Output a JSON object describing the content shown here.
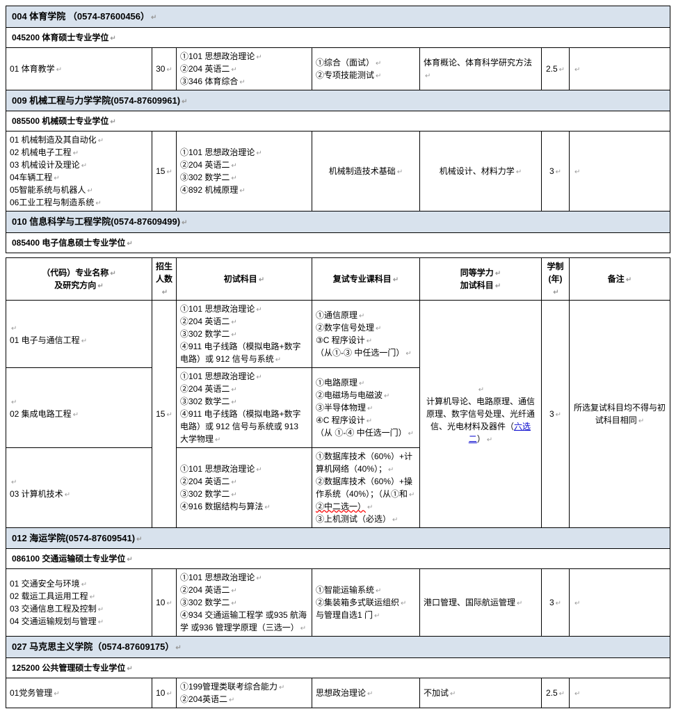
{
  "colors": {
    "header_bg": "#d8e2ed",
    "border": "#000000",
    "link": "#0000cc"
  },
  "col_widths": [
    "210",
    "35",
    "195",
    "155",
    "175",
    "40",
    "140"
  ],
  "dept004": {
    "title": "004 体育学院 （0574-87600456）",
    "program": "045200 体育硕士专业学位",
    "row": {
      "name": "01 体育教学",
      "quota": "30",
      "init": [
        "①101 思想政治理论",
        "②204 英语二",
        "③346 体育综合"
      ],
      "retest": [
        "①综合（面试）",
        "②专项技能测试"
      ],
      "extra": "体育概论、体育科学研究方法",
      "years": "2.5",
      "note": ""
    }
  },
  "dept009": {
    "title": "009 机械工程与力学学院(0574-87609961)",
    "program": "085500 机械硕士专业学位",
    "row": {
      "names": [
        "01 机械制造及其自动化",
        "02 机械电子工程",
        "03 机械设计及理论",
        "04车辆工程",
        "05智能系统与机器人",
        "06工业工程与制造系统"
      ],
      "quota": "15",
      "init": [
        "①101 思想政治理论",
        "②204 英语二",
        "③302 数学二",
        "④892 机械原理"
      ],
      "retest": "机械制造技术基础",
      "extra": "机械设计、材料力学",
      "years": "3",
      "note": ""
    }
  },
  "dept010": {
    "title": "010 信息科学与工程学院(0574-87609499)",
    "program": "085400 电子信息硕士专业学位"
  },
  "table2_head": {
    "c1a": "（代码）专业名称",
    "c1b": "及研究方向",
    "c2a": "招生",
    "c2b": "人数",
    "c3": "初试科目",
    "c4": "复试专业课科目",
    "c5a": "同等学力",
    "c5b": "加试科目",
    "c6a": "学制",
    "c6b": "(年)",
    "c7": "备注"
  },
  "info_rows": {
    "r1": {
      "name": "01 电子与通信工程",
      "init": [
        "①101 思想政治理论",
        "②204 英语二",
        "③302 数学二",
        "④911 电子线路（模拟电路+数字电路）或 912 信号与系统"
      ],
      "retest": [
        "①通信原理",
        "②数字信号处理",
        "③C 程序设计",
        "（从①-③ 中任选一门）"
      ]
    },
    "r2": {
      "name": "02 集成电路工程",
      "quota": "15",
      "init": [
        "①101 思想政治理论",
        "②204 英语二",
        "③302 数学二",
        "④911 电子线路（模拟电路+数字电路）或 912 信号与系统或 913 大学物理"
      ],
      "retest": [
        "①电路原理",
        "②电磁场与电磁波",
        "③半导体物理",
        "④C 程序设计",
        "（从 ①-④ 中任选一门）"
      ],
      "extra_a": "计算机导论、电路原理、通信原理、数字信号处理、光纤通信、光电材料及器件（",
      "extra_link": "六选二",
      "extra_b": "）",
      "years": "3",
      "note": "所选复试科目均不得与初试科目相同"
    },
    "r3": {
      "name": "03 计算机技术",
      "init": [
        "①101 思想政治理论",
        "②204 英语二",
        "③302 数学二",
        "④916 数据结构与算法"
      ],
      "retest_a": [
        "①数据库技术（60%）+计算机网络（40%）；",
        "②数据库技术（60%）+操作系统（40%）；（从①和"
      ],
      "retest_wavy": "②中二选一）",
      "retest_b": "③上机测试（必选）"
    }
  },
  "dept012": {
    "title": "012 海运学院(0574-87609541)",
    "program": "086100 交通运输硕士专业学位",
    "row": {
      "names": [
        "01 交通安全与环境",
        "02 载运工具运用工程",
        "03 交通信息工程及控制",
        "04 交通运输规划与管理"
      ],
      "quota": "10",
      "init": [
        "①101 思想政治理论",
        "②204 英语二",
        "③302 数学二",
        "④934 交通运输工程学 或935 航海学 或936 管理学原理（三选一）"
      ],
      "retest": [
        "①智能运输系统",
        "②集装箱多式联运组织",
        "与管理自选1 门"
      ],
      "extra": "港口管理、国际航运管理",
      "years": "3",
      "note": ""
    }
  },
  "dept027": {
    "title": "027 马克思主义学院（0574-87609175）",
    "program": "125200 公共管理硕士专业学位",
    "row": {
      "name": "01党务管理",
      "quota": "10",
      "init": [
        "①199管理类联考综合能力",
        "②204英语二"
      ],
      "retest": "思想政治理论",
      "extra": "不加试",
      "years": "2.5",
      "note": ""
    }
  }
}
